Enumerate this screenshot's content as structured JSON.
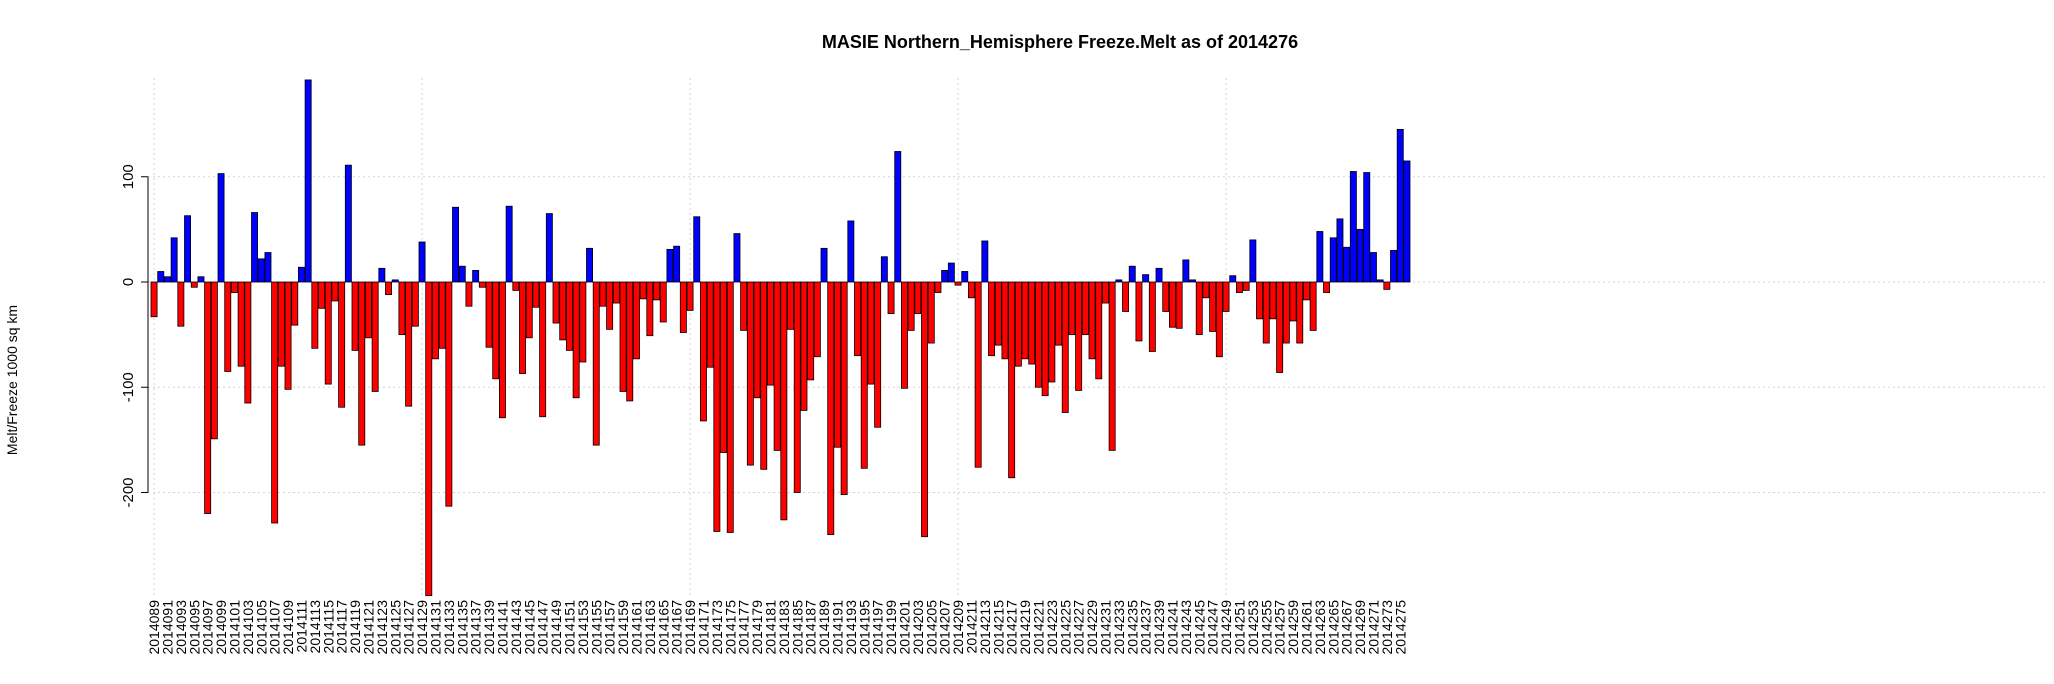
{
  "chart_data": {
    "type": "bar",
    "title": "MASIE Northern_Hemisphere Freeze.Melt as of 2014276",
    "xlabel": "",
    "ylabel": "Melt/Freeze 1000 sq km",
    "ylim": [
      -300,
      195
    ],
    "yticks": [
      -200,
      -100,
      0,
      100
    ],
    "grid": true,
    "colors": {
      "positive": "#0000FF",
      "negative": "#FF0000"
    },
    "x_start": 2014089,
    "x_end": 2014276,
    "x_tick_step": 2,
    "values": [
      -33,
      10,
      5,
      42,
      -42,
      63,
      -5,
      5,
      -220,
      -149,
      103,
      -85,
      -10,
      -80,
      -115,
      66,
      22,
      28,
      -229,
      -80,
      -102,
      -41,
      14,
      192,
      -63,
      -25,
      -97,
      -18,
      -119,
      111,
      -65,
      -155,
      -53,
      -104,
      13,
      -12,
      2,
      -50,
      -118,
      -42,
      38,
      -298,
      -73,
      -63,
      -213,
      71,
      15,
      -23,
      11,
      -5,
      -62,
      -92,
      -129,
      72,
      -8,
      -87,
      -53,
      -24,
      -128,
      65,
      -39,
      -55,
      -65,
      -110,
      -76,
      32,
      -155,
      -23,
      -45,
      -20,
      -104,
      -113,
      -73,
      -16,
      -51,
      -17,
      -38,
      31,
      34,
      -48,
      -27,
      62,
      -132,
      -81,
      -237,
      -162,
      -238,
      46,
      -46,
      -174,
      -110,
      -178,
      -98,
      -160,
      -226,
      -45,
      -200,
      -122,
      -93,
      -71,
      32,
      -240,
      -157,
      -202,
      58,
      -70,
      -177,
      -97,
      -138,
      24,
      -30,
      124,
      -101,
      -46,
      -30,
      -242,
      -58,
      -10,
      11,
      18,
      -3,
      10,
      -15,
      -176,
      39,
      -70,
      -60,
      -73,
      -186,
      -80,
      -73,
      -78,
      -100,
      -108,
      -95,
      -60,
      -124,
      -50,
      -103,
      -50,
      -73,
      -92,
      -20,
      -160,
      2,
      -28,
      15,
      -56,
      7,
      -66,
      13,
      -28,
      -43,
      -44,
      21,
      2,
      -50,
      -15,
      -47,
      -71,
      -28,
      6,
      -10,
      -8,
      40,
      -35,
      -58,
      -35,
      -86,
      -58,
      -37,
      -58,
      -17,
      -46,
      48,
      -10,
      42,
      60,
      33,
      105,
      50,
      104,
      28,
      2,
      -7,
      30,
      145,
      115
    ]
  }
}
